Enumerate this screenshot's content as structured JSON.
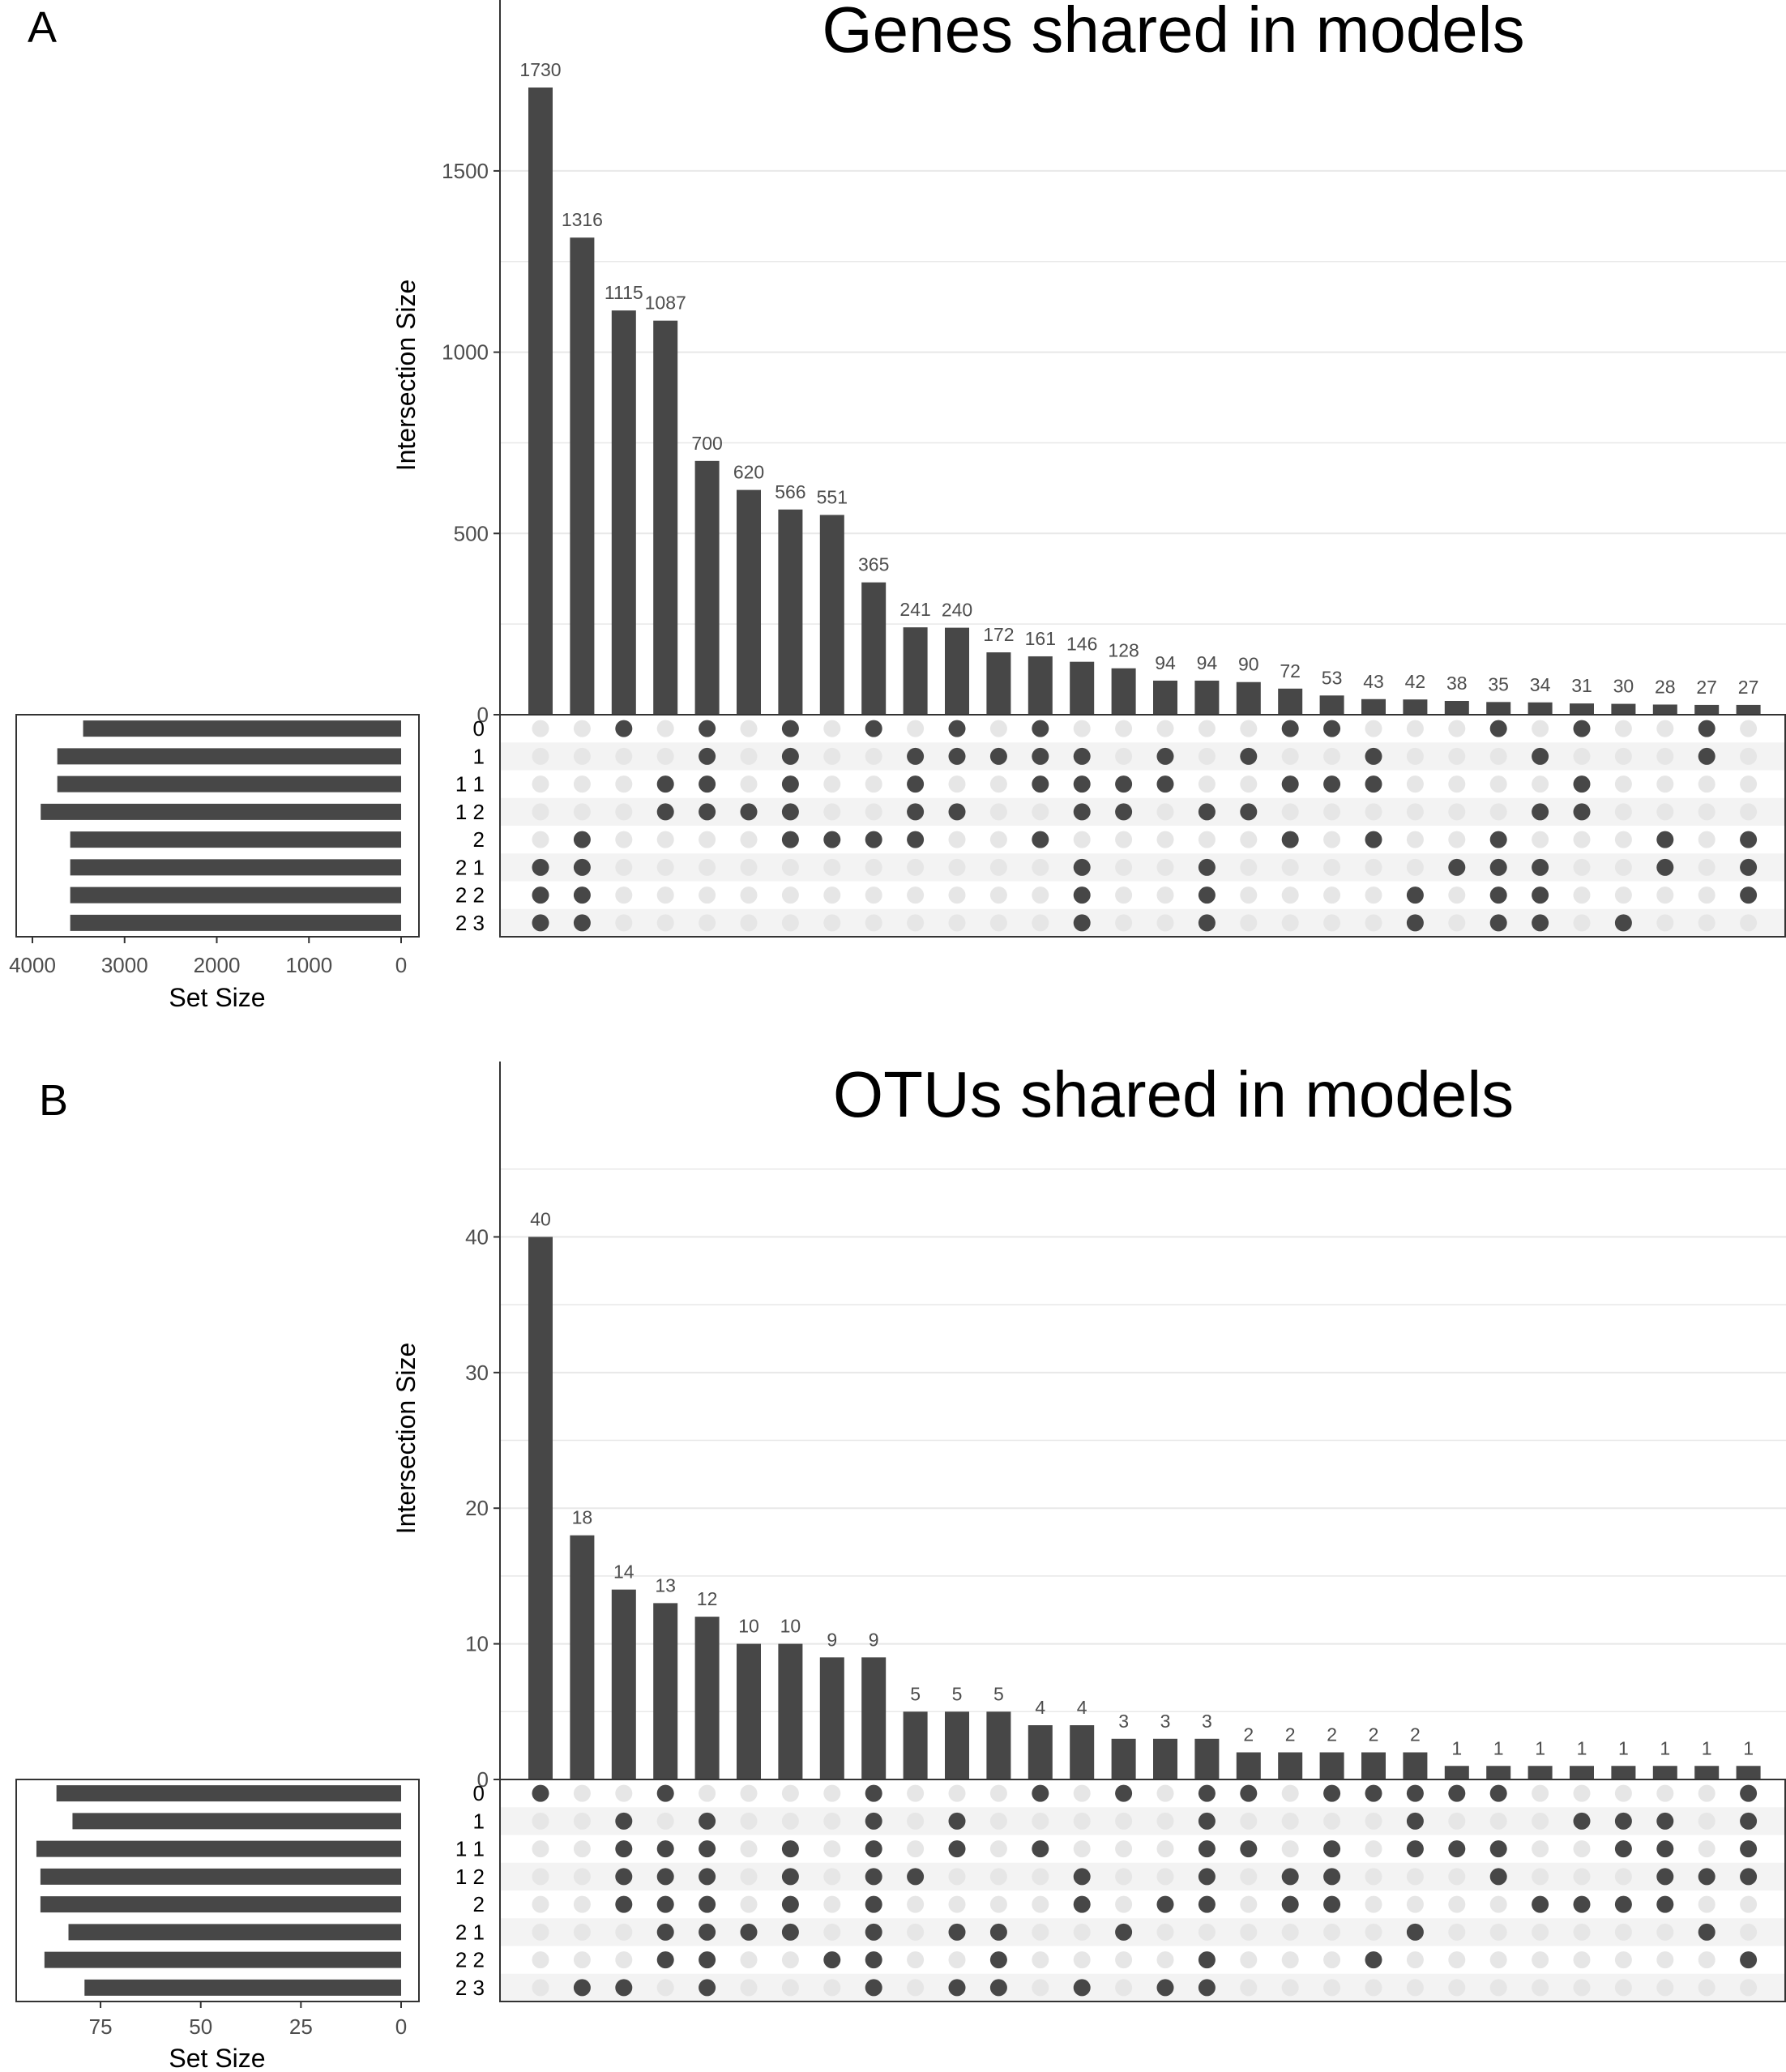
{
  "colors": {
    "bar": "#474747",
    "dot_on": "#474747",
    "dot_off": "#e6e6e6",
    "stripe": "#f3f3f3",
    "grid": "#e8e8e8",
    "axis": "#333333"
  },
  "chart_data": [
    {
      "type": "bar",
      "panel_label": "A",
      "title": "Genes shared in models",
      "ylabel": "Intersection Size",
      "set_size_label": "Set Size",
      "ylim": [
        0,
        1730
      ],
      "yticks": [
        0,
        500,
        1000,
        1500
      ],
      "set_size_ticks": [
        4000,
        3000,
        2000,
        1000,
        0
      ],
      "set_size_lim": [
        0,
        4000
      ],
      "grid": true,
      "sets": [
        "0",
        "1",
        "1 1",
        "1 2",
        "2",
        "2 1",
        "2 2",
        "2 3"
      ],
      "set_sizes": [
        3450,
        3730,
        3730,
        3910,
        3590,
        3590,
        3590,
        3590
      ],
      "values": [
        1730,
        1316,
        1115,
        1087,
        700,
        620,
        566,
        551,
        365,
        241,
        240,
        172,
        161,
        146,
        128,
        94,
        94,
        90,
        72,
        53,
        43,
        42,
        38,
        35,
        34,
        31,
        30,
        28,
        27,
        27
      ],
      "matrix": [
        [
          5,
          6,
          7
        ],
        [
          4,
          5,
          6,
          7
        ],
        [
          0
        ],
        [
          2,
          3
        ],
        [
          0,
          1,
          2,
          3
        ],
        [
          3
        ],
        [
          0,
          1,
          2,
          3,
          4
        ],
        [
          4
        ],
        [
          0,
          4
        ],
        [
          1,
          2,
          3,
          4
        ],
        [
          0,
          1,
          3
        ],
        [
          1
        ],
        [
          0,
          1,
          2,
          4
        ],
        [
          1,
          2,
          3,
          5,
          6,
          7
        ],
        [
          2,
          3
        ],
        [
          1,
          2
        ],
        [
          3,
          5,
          6,
          7
        ],
        [
          1,
          3
        ],
        [
          0,
          2,
          4
        ],
        [
          0,
          2
        ],
        [
          1,
          2,
          4
        ],
        [
          6,
          7
        ],
        [
          5
        ],
        [
          0,
          4,
          5,
          6,
          7
        ],
        [
          1,
          3,
          5,
          6,
          7
        ],
        [
          0,
          2,
          3
        ],
        [
          7
        ],
        [
          4,
          5
        ],
        [
          0,
          1
        ],
        [
          4,
          5,
          6
        ]
      ]
    },
    {
      "type": "bar",
      "panel_label": "B",
      "title": "OTUs shared in models",
      "ylabel": "Intersection Size",
      "set_size_label": "Set Size",
      "ylim": [
        0,
        46
      ],
      "yticks": [
        0,
        10,
        20,
        30,
        40
      ],
      "set_size_ticks": [
        75,
        50,
        25,
        0
      ],
      "set_size_lim": [
        0,
        92
      ],
      "grid": true,
      "sets": [
        "0",
        "1",
        "1 1",
        "1 2",
        "2",
        "2 1",
        "2 2",
        "2 3"
      ],
      "set_sizes": [
        86,
        82,
        91,
        90,
        90,
        83,
        89,
        79
      ],
      "values": [
        40,
        18,
        14,
        13,
        12,
        10,
        10,
        9,
        9,
        5,
        5,
        5,
        4,
        4,
        3,
        3,
        3,
        2,
        2,
        2,
        2,
        2,
        1,
        1,
        1,
        1,
        1,
        1,
        1,
        1
      ],
      "matrix": [
        [
          0
        ],
        [
          7
        ],
        [
          1,
          2,
          3,
          4,
          7
        ],
        [
          0,
          2,
          3,
          4,
          5,
          6
        ],
        [
          1,
          2,
          3,
          4,
          5,
          6,
          7
        ],
        [
          5
        ],
        [
          2,
          3,
          4,
          5
        ],
        [
          6
        ],
        [
          0,
          1,
          2,
          3,
          4,
          5,
          6,
          7
        ],
        [
          3
        ],
        [
          1,
          2,
          5,
          7
        ],
        [
          5,
          6,
          7
        ],
        [
          0,
          2
        ],
        [
          3,
          4,
          7
        ],
        [
          0,
          5
        ],
        [
          4,
          7
        ],
        [
          0,
          1,
          2,
          3,
          4,
          6,
          7
        ],
        [
          0,
          2
        ],
        [
          3,
          4
        ],
        [
          0,
          2,
          3,
          4
        ],
        [
          0,
          6
        ],
        [
          0,
          1,
          2,
          5
        ],
        [
          0,
          2
        ],
        [
          0,
          2,
          3
        ],
        [
          4
        ],
        [
          1,
          4
        ],
        [
          1,
          2,
          4
        ],
        [
          1,
          2,
          3,
          4
        ],
        [
          3,
          5
        ],
        [
          0,
          1,
          2,
          3,
          6
        ]
      ]
    }
  ]
}
